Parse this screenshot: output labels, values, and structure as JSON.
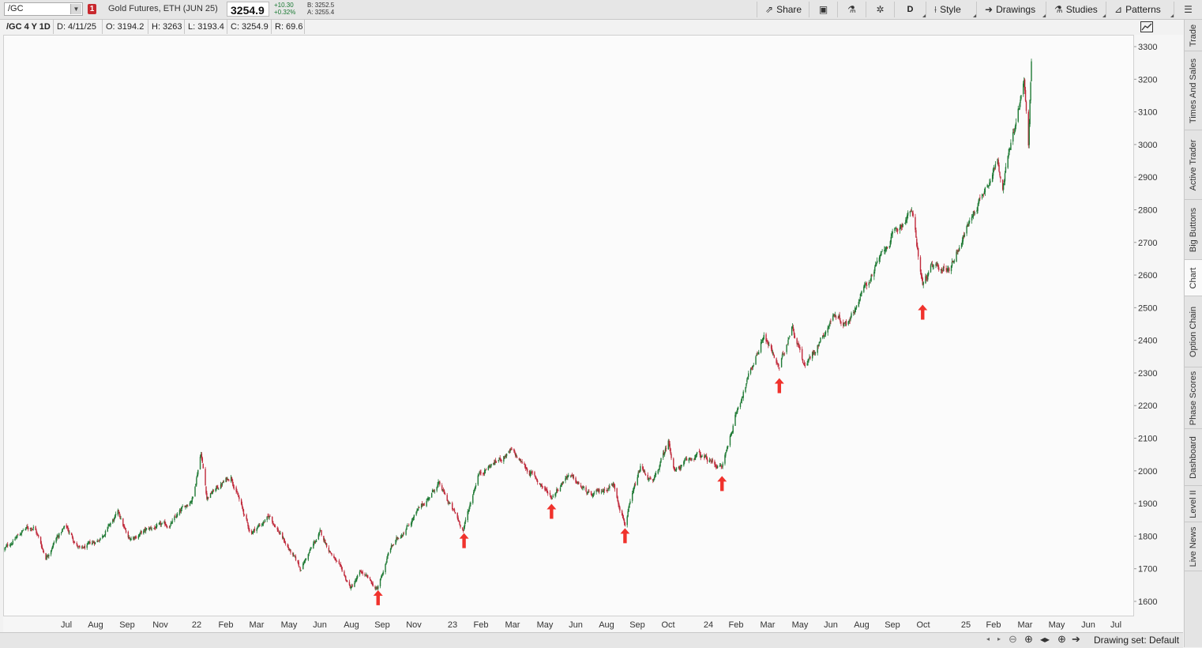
{
  "topbar": {
    "symbol": "/GC",
    "link_badge": "1",
    "description": "Gold Futures, ETH (JUN 25)",
    "last_price": "3254.9",
    "net_change": "+10.30",
    "pct_change": "+0.32%",
    "bid": "B: 3252.5",
    "ask": "A: 3255.4",
    "buttons": {
      "share": "Share",
      "period": "D",
      "style": "Style",
      "drawings": "Drawings",
      "studies": "Studies",
      "patterns": "Patterns"
    },
    "icons": [
      "share-icon",
      "data-box-icon",
      "flask-icon",
      "gear-icon",
      "style-icon",
      "drawings-icon",
      "studies-icon",
      "patterns-icon",
      "menu-icon"
    ]
  },
  "infobar": {
    "chart_id": "/GC 4 Y 1D",
    "date": "D: 4/11/25",
    "open": "O: 3194.2",
    "high": "H: 3263",
    "low": "L: 3193.4",
    "close": "C: 3254.9",
    "range": "R: 69.6"
  },
  "bottombar": {
    "drawing_set": "Drawing set: Default",
    "icons": [
      "scroll-left-icon",
      "scroll-right-icon",
      "zoom-out-icon",
      "zoom-in-icon",
      "fit-icon",
      "crosshair-icon",
      "pan-right-icon"
    ]
  },
  "right_tabs": [
    "Trade",
    "Times And Sales",
    "Active Trader",
    "Big Buttons",
    "Chart",
    "Option Chain",
    "Phase Scores",
    "Dashboard",
    "Level II",
    "Live News"
  ],
  "active_tab": "Chart",
  "colors": {
    "up": "#1f7a35",
    "down": "#c0283a",
    "arrow": "#f0322c",
    "background": "#fbfbfb"
  },
  "chart_data": {
    "type": "candlestick",
    "symbol": "/GC",
    "aggregation": "1D",
    "ylim": [
      1550,
      3350
    ],
    "y_ticks": [
      1600,
      1700,
      1800,
      1900,
      2000,
      2100,
      2200,
      2300,
      2400,
      2500,
      2600,
      2700,
      2800,
      2900,
      3000,
      3100,
      3200,
      3300
    ],
    "x_tick_labels": [
      "Jul",
      "Aug",
      "Sep",
      "Nov",
      "22",
      "Feb",
      "Mar",
      "May",
      "Jun",
      "Aug",
      "Sep",
      "Nov",
      "23",
      "Feb",
      "Mar",
      "May",
      "Jun",
      "Aug",
      "Sep",
      "Oct",
      "24",
      "Feb",
      "Mar",
      "May",
      "Jun",
      "Aug",
      "Sep",
      "Oct",
      "25",
      "Feb",
      "Mar",
      "May",
      "Jun",
      "Jul"
    ],
    "price_path_anchors": [
      [
        "2021-06-14",
        1760
      ],
      [
        "2021-06-25",
        1785
      ],
      [
        "2021-07-10",
        1820
      ],
      [
        "2021-07-24",
        1830
      ],
      [
        "2021-08-09",
        1735
      ],
      [
        "2021-08-22",
        1790
      ],
      [
        "2021-09-05",
        1830
      ],
      [
        "2021-09-25",
        1755
      ],
      [
        "2021-10-20",
        1790
      ],
      [
        "2021-11-16",
        1870
      ],
      [
        "2021-11-29",
        1790
      ],
      [
        "2021-12-31",
        1825
      ],
      [
        "2022-01-25",
        1835
      ],
      [
        "2022-02-25",
        1920
      ],
      [
        "2022-03-08",
        2060
      ],
      [
        "2022-03-16",
        1920
      ],
      [
        "2022-04-18",
        1985
      ],
      [
        "2022-05-14",
        1810
      ],
      [
        "2022-06-10",
        1860
      ],
      [
        "2022-07-21",
        1700
      ],
      [
        "2022-08-17",
        1810
      ],
      [
        "2022-09-28",
        1640
      ],
      [
        "2022-10-12",
        1690
      ],
      [
        "2022-11-03",
        1635
      ],
      [
        "2022-11-20",
        1760
      ],
      [
        "2023-01-25",
        1960
      ],
      [
        "2023-02-28",
        1820
      ],
      [
        "2023-03-20",
        1990
      ],
      [
        "2023-05-04",
        2060
      ],
      [
        "2023-06-09",
        1970
      ],
      [
        "2023-06-28",
        1920
      ],
      [
        "2023-07-20",
        1990
      ],
      [
        "2023-08-21",
        1920
      ],
      [
        "2023-09-20",
        1960
      ],
      [
        "2023-10-06",
        1840
      ],
      [
        "2023-10-27",
        2010
      ],
      [
        "2023-11-13",
        1960
      ],
      [
        "2023-12-04",
        2090
      ],
      [
        "2023-12-13",
        2000
      ],
      [
        "2024-01-12",
        2050
      ],
      [
        "2024-02-15",
        2010
      ],
      [
        "2024-03-08",
        2200
      ],
      [
        "2024-04-12",
        2420
      ],
      [
        "2024-05-03",
        2310
      ],
      [
        "2024-05-20",
        2450
      ],
      [
        "2024-06-07",
        2320
      ],
      [
        "2024-07-17",
        2480
      ],
      [
        "2024-08-02",
        2450
      ],
      [
        "2024-09-26",
        2690
      ],
      [
        "2024-10-30",
        2800
      ],
      [
        "2024-11-14",
        2570
      ],
      [
        "2024-11-25",
        2620
      ],
      [
        "2024-12-20",
        2620
      ],
      [
        "2025-01-22",
        2790
      ],
      [
        "2025-02-24",
        2950
      ],
      [
        "2025-03-03",
        2880
      ],
      [
        "2025-04-01",
        3190
      ],
      [
        "2025-04-07",
        3000
      ],
      [
        "2025-04-11",
        3250
      ]
    ],
    "last_bar": {
      "date": "2025-04-11",
      "open": 3194.2,
      "high": 3263,
      "low": 3193.4,
      "close": 3254.9
    },
    "annotations": [
      {
        "type": "up-arrow",
        "date": "2022-11-04",
        "price": 1610
      },
      {
        "type": "up-arrow",
        "date": "2023-03-01",
        "price": 1785
      },
      {
        "type": "up-arrow",
        "date": "2023-06-28",
        "price": 1875
      },
      {
        "type": "up-arrow",
        "date": "2023-10-06",
        "price": 1800
      },
      {
        "type": "up-arrow",
        "date": "2024-02-15",
        "price": 1960
      },
      {
        "type": "up-arrow",
        "date": "2024-05-03",
        "price": 2260
      },
      {
        "type": "up-arrow",
        "date": "2024-11-14",
        "price": 2485
      }
    ]
  }
}
